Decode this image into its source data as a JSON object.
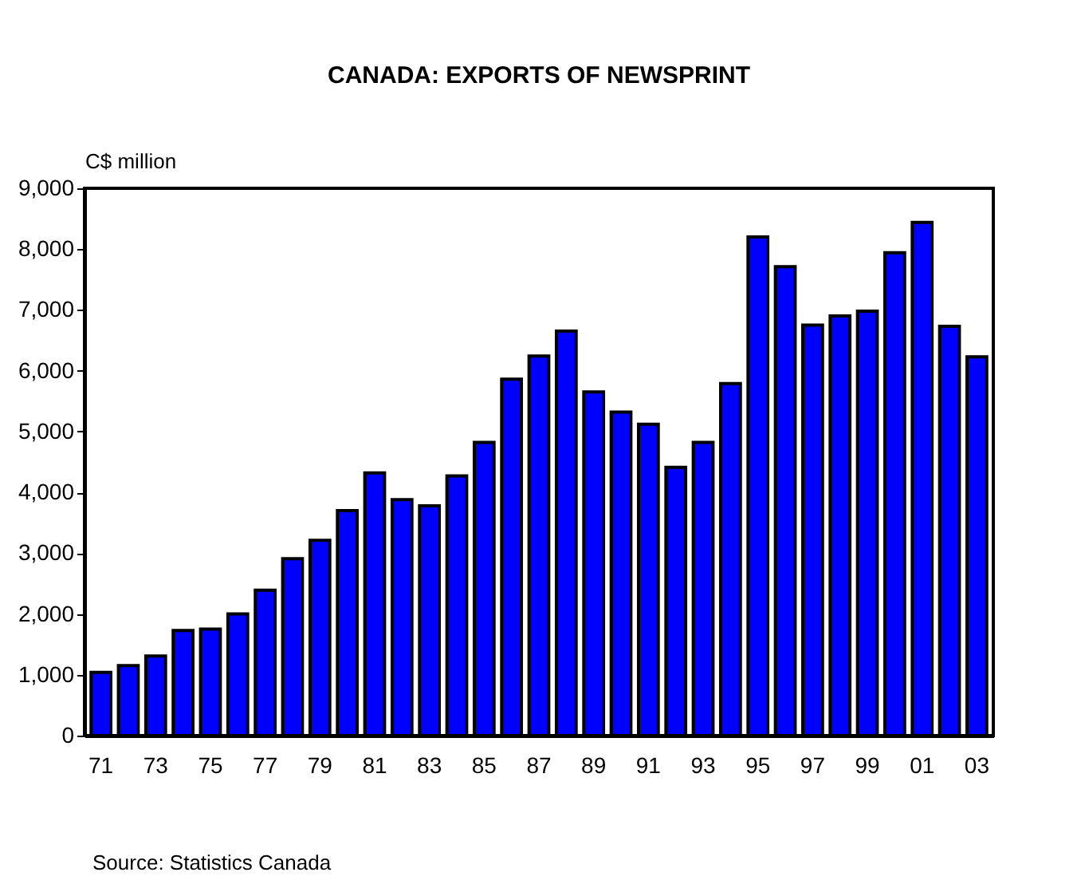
{
  "chart_data": {
    "type": "bar",
    "title": "CANADA: EXPORTS OF NEWSPRINT",
    "ylabel": "C$ million",
    "categories": [
      "71",
      null,
      "73",
      null,
      "75",
      null,
      "77",
      null,
      "79",
      null,
      "81",
      null,
      "83",
      null,
      "85",
      null,
      "87",
      null,
      "89",
      null,
      "91",
      null,
      "93",
      null,
      "95",
      null,
      "97",
      null,
      "99",
      null,
      "01",
      null,
      "03"
    ],
    "series": [
      {
        "color": "#0000ff",
        "values": [
          1040,
          1150,
          1310,
          1730,
          1750,
          2000,
          2390,
          2910,
          3210,
          3700,
          4320,
          3880,
          3780,
          4270,
          4820,
          5860,
          6240,
          6650,
          5650,
          5320,
          5120,
          4410,
          4820,
          5790,
          8200,
          7710,
          6750,
          6900,
          6980,
          7940,
          8440,
          6730,
          6230
        ]
      }
    ],
    "ylim": [
      0,
      9000
    ],
    "yticks": [
      0,
      {
        "value": 1000,
        "label": "1,000"
      },
      {
        "value": 2000,
        "label": "2,000"
      },
      {
        "value": 3000,
        "label": "3,000"
      },
      {
        "value": 4000,
        "label": "4,000"
      },
      {
        "value": 5000,
        "label": "5,000"
      },
      {
        "value": 6000,
        "label": "6,000"
      },
      {
        "value": 7000,
        "label": "7,000"
      },
      {
        "value": 8000,
        "label": "8,000"
      },
      {
        "value": 9000,
        "label": "9,000"
      }
    ],
    "grid": false,
    "annotations": [
      "Source: Statistics Canada"
    ]
  }
}
